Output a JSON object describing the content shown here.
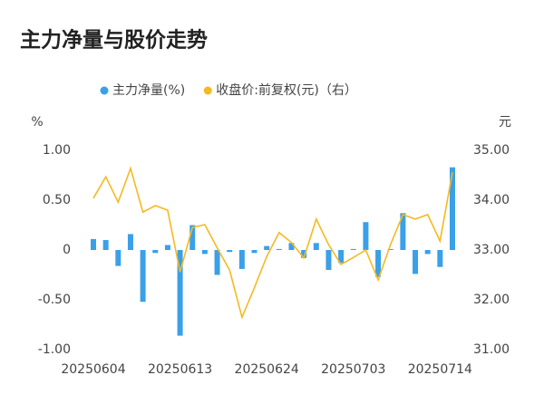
{
  "chart_data": {
    "type": "bar-line",
    "title": "主力净量与股价走势",
    "y_label": "%",
    "y2_label": "元",
    "categories": [
      "20250604",
      null,
      null,
      null,
      null,
      null,
      null,
      "20250613",
      null,
      null,
      null,
      null,
      null,
      null,
      "20250624",
      null,
      null,
      null,
      null,
      null,
      null,
      "20250703",
      null,
      null,
      null,
      null,
      null,
      null,
      "20250714",
      null
    ],
    "series": [
      {
        "name": "主力净量(%)",
        "type": "bar",
        "color": "#3aa0e8",
        "values": [
          0.11,
          0.1,
          -0.16,
          0.16,
          -0.52,
          -0.03,
          0.05,
          -0.86,
          0.25,
          -0.04,
          -0.25,
          -0.02,
          -0.19,
          -0.03,
          0.04,
          0.01,
          0.07,
          -0.08,
          0.07,
          -0.2,
          -0.13,
          0.01,
          0.28,
          -0.27,
          0.01,
          0.37,
          -0.24,
          -0.04,
          -0.17,
          0.83
        ]
      },
      {
        "name": "收盘价:前复权(元)（右）",
        "type": "line",
        "axis": "y2",
        "color": "#f5b921",
        "values": [
          34.04,
          34.47,
          33.96,
          34.64,
          33.76,
          33.89,
          33.8,
          32.56,
          33.45,
          33.51,
          33.04,
          32.6,
          31.65,
          32.24,
          32.87,
          33.35,
          33.15,
          32.84,
          33.62,
          33.11,
          32.71,
          32.85,
          33.0,
          32.4,
          33.11,
          33.71,
          33.62,
          33.71,
          33.18,
          34.56
        ]
      }
    ],
    "ylim": [
      -1,
      1
    ],
    "yticks": [
      {
        "value": -1,
        "label": "-1.00"
      },
      {
        "value": -0.5,
        "label": "-0.50"
      },
      {
        "value": 0,
        "label": "0"
      },
      {
        "value": 0.5,
        "label": "0.50"
      },
      {
        "value": 1,
        "label": "1.00"
      }
    ],
    "y2lim": [
      31,
      35
    ],
    "y2ticks": [
      {
        "value": 31,
        "label": "31.00"
      },
      {
        "value": 32,
        "label": "32.00"
      },
      {
        "value": 33,
        "label": "33.00"
      },
      {
        "value": 34,
        "label": "34.00"
      },
      {
        "value": 35,
        "label": "35.00"
      }
    ]
  }
}
